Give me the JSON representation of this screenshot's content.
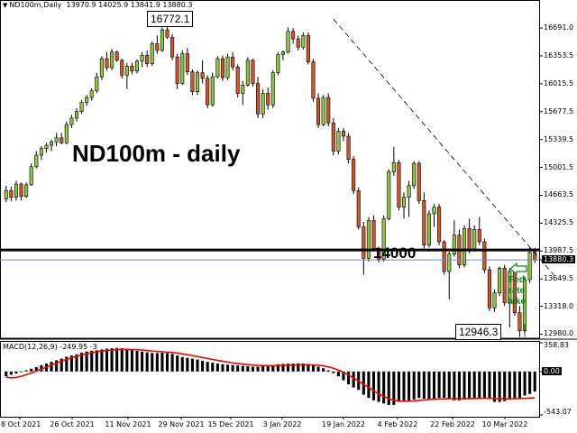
{
  "window": {
    "symbol_timeframe": "ND100m,Daily",
    "ohlc": "13970.9 14025.9 13841.9 13880.3"
  },
  "annotations": {
    "big_title": "ND100m - daily",
    "level_label": "14000",
    "high_callout": "16772.1",
    "low_callout": "12946.3",
    "fed_lines": [
      "Fed",
      "rate",
      "hike"
    ]
  },
  "price_axis": {
    "ticks": [
      "16691.0",
      "16353.5",
      "16015.5",
      "15677.5",
      "15339.5",
      "15001.5",
      "14663.5",
      "14325.5",
      "13987.5",
      "13649.5",
      "13318.0",
      "12980.0"
    ],
    "current_price_label": "13880.3"
  },
  "macd": {
    "header": "MACD(12,26,9) -249.95 -3",
    "axis_ticks": [
      "358.83",
      "0.00",
      "-543.07"
    ]
  },
  "time_axis": {
    "labels": [
      "8 Oct 2021",
      "26 Oct 2021",
      "11 Nov 2021",
      "29 Nov 2021",
      "15 Dec 2021",
      "3 Jan 2022",
      "19 Jan 2022",
      "4 Feb 2022",
      "22 Feb 2022",
      "10 Mar 2022"
    ]
  },
  "colors": {
    "bull": "#8dc63f",
    "bear": "#d2562a",
    "wick": "#000000",
    "signal": "#ff0000",
    "level_line": "#000000",
    "current_line": "#7a86c0",
    "fed_label": "#0a8a1a"
  },
  "chart_data": {
    "type": "candlestick",
    "title": "ND100m - daily",
    "ylim": [
      12930,
      16900
    ],
    "horizontal_levels": [
      14000,
      13880.3
    ],
    "trendline": {
      "from": {
        "x": "7 Dec 2021",
        "y": 16800
      },
      "to": {
        "x": "15 Mar 2022",
        "y": 13800
      }
    },
    "candles": [
      {
        "o": 14620,
        "h": 14780,
        "l": 14580,
        "c": 14720
      },
      {
        "o": 14720,
        "h": 14770,
        "l": 14590,
        "c": 14640
      },
      {
        "o": 14640,
        "h": 14840,
        "l": 14600,
        "c": 14800
      },
      {
        "o": 14800,
        "h": 14820,
        "l": 14600,
        "c": 14650
      },
      {
        "o": 14650,
        "h": 14820,
        "l": 14630,
        "c": 14790
      },
      {
        "o": 14790,
        "h": 15050,
        "l": 14780,
        "c": 15010
      },
      {
        "o": 15010,
        "h": 15200,
        "l": 14990,
        "c": 15150
      },
      {
        "o": 15150,
        "h": 15260,
        "l": 15090,
        "c": 15230
      },
      {
        "o": 15230,
        "h": 15300,
        "l": 15180,
        "c": 15270
      },
      {
        "o": 15270,
        "h": 15340,
        "l": 15200,
        "c": 15310
      },
      {
        "o": 15310,
        "h": 15420,
        "l": 15260,
        "c": 15360
      },
      {
        "o": 15360,
        "h": 15420,
        "l": 15280,
        "c": 15300
      },
      {
        "o": 15300,
        "h": 15560,
        "l": 15280,
        "c": 15520
      },
      {
        "o": 15520,
        "h": 15640,
        "l": 15480,
        "c": 15600
      },
      {
        "o": 15600,
        "h": 15720,
        "l": 15560,
        "c": 15680
      },
      {
        "o": 15680,
        "h": 15820,
        "l": 15650,
        "c": 15790
      },
      {
        "o": 15790,
        "h": 15880,
        "l": 15750,
        "c": 15850
      },
      {
        "o": 15850,
        "h": 15960,
        "l": 15810,
        "c": 15930
      },
      {
        "o": 15930,
        "h": 16150,
        "l": 15900,
        "c": 16100
      },
      {
        "o": 16100,
        "h": 16350,
        "l": 16060,
        "c": 16320
      },
      {
        "o": 16320,
        "h": 16400,
        "l": 16180,
        "c": 16210
      },
      {
        "o": 16210,
        "h": 16440,
        "l": 16180,
        "c": 16400
      },
      {
        "o": 16400,
        "h": 16420,
        "l": 16280,
        "c": 16300
      },
      {
        "o": 16300,
        "h": 16320,
        "l": 16080,
        "c": 16120
      },
      {
        "o": 16120,
        "h": 16270,
        "l": 15950,
        "c": 16230
      },
      {
        "o": 16230,
        "h": 16270,
        "l": 16130,
        "c": 16170
      },
      {
        "o": 16170,
        "h": 16310,
        "l": 16140,
        "c": 16290
      },
      {
        "o": 16290,
        "h": 16400,
        "l": 16220,
        "c": 16360
      },
      {
        "o": 16360,
        "h": 16420,
        "l": 16220,
        "c": 16260
      },
      {
        "o": 16260,
        "h": 16530,
        "l": 16230,
        "c": 16500
      },
      {
        "o": 16500,
        "h": 16600,
        "l": 16380,
        "c": 16420
      },
      {
        "o": 16420,
        "h": 16700,
        "l": 16400,
        "c": 16670
      },
      {
        "o": 16670,
        "h": 16772.1,
        "l": 16560,
        "c": 16580
      },
      {
        "o": 16580,
        "h": 16620,
        "l": 16300,
        "c": 16340
      },
      {
        "o": 16340,
        "h": 16380,
        "l": 15950,
        "c": 16020
      },
      {
        "o": 16020,
        "h": 16420,
        "l": 16000,
        "c": 16380
      },
      {
        "o": 16380,
        "h": 16450,
        "l": 16120,
        "c": 16160
      },
      {
        "o": 16160,
        "h": 16190,
        "l": 15880,
        "c": 15920
      },
      {
        "o": 15920,
        "h": 16180,
        "l": 15880,
        "c": 16150
      },
      {
        "o": 16150,
        "h": 16300,
        "l": 16020,
        "c": 16080
      },
      {
        "o": 16080,
        "h": 16120,
        "l": 15720,
        "c": 15760
      },
      {
        "o": 15760,
        "h": 16150,
        "l": 15740,
        "c": 16100
      },
      {
        "o": 16100,
        "h": 16350,
        "l": 16080,
        "c": 16320
      },
      {
        "o": 16320,
        "h": 16360,
        "l": 16050,
        "c": 16090
      },
      {
        "o": 16090,
        "h": 16380,
        "l": 16060,
        "c": 16340
      },
      {
        "o": 16340,
        "h": 16400,
        "l": 16180,
        "c": 16220
      },
      {
        "o": 16220,
        "h": 16250,
        "l": 15850,
        "c": 15900
      },
      {
        "o": 15900,
        "h": 16050,
        "l": 15760,
        "c": 16000
      },
      {
        "o": 16000,
        "h": 16340,
        "l": 15980,
        "c": 16300
      },
      {
        "o": 16300,
        "h": 16320,
        "l": 15980,
        "c": 16020
      },
      {
        "o": 16020,
        "h": 16100,
        "l": 15600,
        "c": 15650
      },
      {
        "o": 15650,
        "h": 15950,
        "l": 15600,
        "c": 15900
      },
      {
        "o": 15900,
        "h": 15970,
        "l": 15700,
        "c": 15760
      },
      {
        "o": 15760,
        "h": 16180,
        "l": 15720,
        "c": 16150
      },
      {
        "o": 16150,
        "h": 16400,
        "l": 16120,
        "c": 16370
      },
      {
        "o": 16370,
        "h": 16420,
        "l": 16300,
        "c": 16400
      },
      {
        "o": 16400,
        "h": 16700,
        "l": 16380,
        "c": 16650
      },
      {
        "o": 16650,
        "h": 16690,
        "l": 16500,
        "c": 16560
      },
      {
        "o": 16560,
        "h": 16600,
        "l": 16420,
        "c": 16460
      },
      {
        "o": 16460,
        "h": 16640,
        "l": 16430,
        "c": 16600
      },
      {
        "o": 16600,
        "h": 16640,
        "l": 16250,
        "c": 16280
      },
      {
        "o": 16280,
        "h": 16320,
        "l": 15800,
        "c": 15840
      },
      {
        "o": 15840,
        "h": 15900,
        "l": 15480,
        "c": 15520
      },
      {
        "o": 15520,
        "h": 15880,
        "l": 15500,
        "c": 15850
      },
      {
        "o": 15850,
        "h": 15900,
        "l": 15500,
        "c": 15540
      },
      {
        "o": 15540,
        "h": 15600,
        "l": 15150,
        "c": 15200
      },
      {
        "o": 15200,
        "h": 15480,
        "l": 15160,
        "c": 15440
      },
      {
        "o": 15440,
        "h": 15480,
        "l": 15320,
        "c": 15380
      },
      {
        "o": 15380,
        "h": 15420,
        "l": 15050,
        "c": 15100
      },
      {
        "o": 15100,
        "h": 15140,
        "l": 14680,
        "c": 14720
      },
      {
        "o": 14720,
        "h": 14760,
        "l": 14250,
        "c": 14280
      },
      {
        "o": 14280,
        "h": 14340,
        "l": 13700,
        "c": 13900
      },
      {
        "o": 13900,
        "h": 14400,
        "l": 13860,
        "c": 14360
      },
      {
        "o": 14360,
        "h": 14420,
        "l": 13980,
        "c": 14020
      },
      {
        "o": 14020,
        "h": 14040,
        "l": 13850,
        "c": 13890
      },
      {
        "o": 13890,
        "h": 14420,
        "l": 13860,
        "c": 14380
      },
      {
        "o": 14380,
        "h": 14980,
        "l": 14360,
        "c": 14950
      },
      {
        "o": 14950,
        "h": 15250,
        "l": 14900,
        "c": 15060
      },
      {
        "o": 15060,
        "h": 15090,
        "l": 14480,
        "c": 14520
      },
      {
        "o": 14520,
        "h": 14700,
        "l": 14380,
        "c": 14640
      },
      {
        "o": 14640,
        "h": 14840,
        "l": 14400,
        "c": 14780
      },
      {
        "o": 14780,
        "h": 15080,
        "l": 14740,
        "c": 15050
      },
      {
        "o": 15050,
        "h": 15080,
        "l": 14560,
        "c": 14600
      },
      {
        "o": 14600,
        "h": 14700,
        "l": 14000,
        "c": 14060
      },
      {
        "o": 14060,
        "h": 14480,
        "l": 14030,
        "c": 14440
      },
      {
        "o": 14440,
        "h": 14560,
        "l": 14280,
        "c": 14520
      },
      {
        "o": 14520,
        "h": 14560,
        "l": 14060,
        "c": 14100
      },
      {
        "o": 14100,
        "h": 14120,
        "l": 13700,
        "c": 13740
      },
      {
        "o": 13740,
        "h": 13980,
        "l": 13400,
        "c": 13950
      },
      {
        "o": 13950,
        "h": 14360,
        "l": 13920,
        "c": 14180
      },
      {
        "o": 14180,
        "h": 14250,
        "l": 13780,
        "c": 13820
      },
      {
        "o": 13820,
        "h": 14300,
        "l": 13790,
        "c": 14260
      },
      {
        "o": 14260,
        "h": 14380,
        "l": 13960,
        "c": 14000
      },
      {
        "o": 14000,
        "h": 14300,
        "l": 13980,
        "c": 14250
      },
      {
        "o": 14250,
        "h": 14400,
        "l": 14060,
        "c": 14100
      },
      {
        "o": 14100,
        "h": 14140,
        "l": 13720,
        "c": 13760
      },
      {
        "o": 13760,
        "h": 13800,
        "l": 13260,
        "c": 13300
      },
      {
        "o": 13300,
        "h": 13520,
        "l": 13250,
        "c": 13480
      },
      {
        "o": 13480,
        "h": 13800,
        "l": 13440,
        "c": 13780
      },
      {
        "o": 13780,
        "h": 13820,
        "l": 13320,
        "c": 13360
      },
      {
        "o": 13360,
        "h": 13780,
        "l": 13060,
        "c": 13740
      },
      {
        "o": 13740,
        "h": 13760,
        "l": 13200,
        "c": 13240
      },
      {
        "o": 13240,
        "h": 13320,
        "l": 12946.3,
        "c": 13020
      },
      {
        "o": 13020,
        "h": 13680,
        "l": 12990,
        "c": 13640
      },
      {
        "o": 13640,
        "h": 14030,
        "l": 13600,
        "c": 13970
      },
      {
        "o": 13970.9,
        "h": 14025.9,
        "l": 13841.9,
        "c": 13880.3
      }
    ],
    "macd": {
      "name": "MACD(12,26,9)",
      "main_last": -249.95,
      "ylim": [
        -543.07,
        358.83
      ],
      "histogram": [
        -60,
        -40,
        -25,
        -5,
        15,
        35,
        55,
        80,
        100,
        120,
        140,
        160,
        185,
        200,
        215,
        235,
        250,
        260,
        265,
        275,
        285,
        290,
        295,
        290,
        285,
        270,
        258,
        248,
        240,
        232,
        230,
        235,
        230,
        220,
        200,
        180,
        170,
        160,
        150,
        135,
        120,
        110,
        100,
        90,
        85,
        80,
        75,
        70,
        65,
        60,
        60,
        65,
        72,
        80,
        90,
        95,
        98,
        100,
        102,
        100,
        95,
        80,
        60,
        40,
        15,
        -20,
        -60,
        -110,
        -160,
        -200,
        -230,
        -290,
        -330,
        -360,
        -380,
        -400,
        -420,
        -420,
        -380,
        -370,
        -370,
        -350,
        -330,
        -340,
        -350,
        -340,
        -330,
        -330,
        -340,
        -360,
        -360,
        -350,
        -340,
        -340,
        -330,
        -330,
        -340,
        -380,
        -380,
        -370,
        -350,
        -340,
        -330,
        -300,
        -280,
        -250
      ],
      "signal": [
        -70,
        -80,
        -75,
        -60,
        -40,
        -20,
        5,
        30,
        55,
        80,
        105,
        130,
        150,
        170,
        190,
        205,
        220,
        235,
        245,
        255,
        262,
        268,
        272,
        275,
        275,
        274,
        272,
        268,
        262,
        256,
        250,
        246,
        242,
        238,
        230,
        220,
        210,
        198,
        186,
        174,
        162,
        150,
        138,
        128,
        118,
        108,
        100,
        92,
        86,
        80,
        76,
        74,
        72,
        72,
        74,
        76,
        78,
        80,
        82,
        84,
        84,
        82,
        78,
        70,
        58,
        40,
        18,
        -10,
        -45,
        -80,
        -120,
        -160,
        -200,
        -240,
        -280,
        -310,
        -340,
        -360,
        -370,
        -372,
        -370,
        -368,
        -362,
        -356,
        -350,
        -346,
        -344,
        -342,
        -340,
        -340,
        -340,
        -340,
        -339,
        -338,
        -337,
        -336,
        -336,
        -338,
        -340,
        -340,
        -342,
        -340,
        -338,
        -336,
        -332,
        -330
      ]
    }
  }
}
